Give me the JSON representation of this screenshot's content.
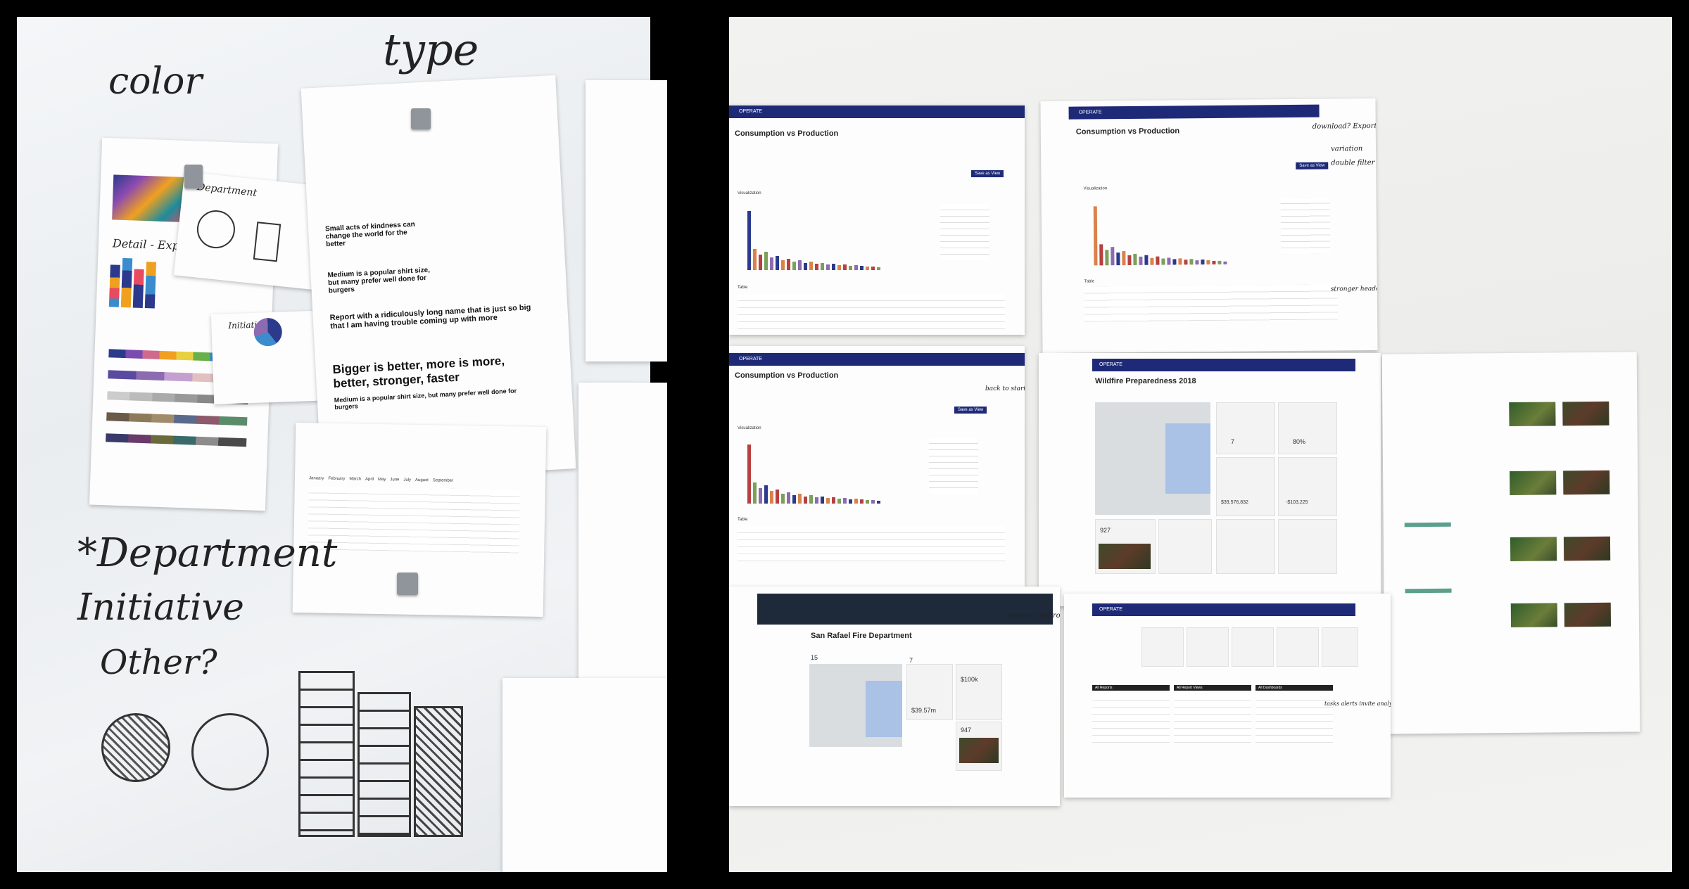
{
  "left_photo": {
    "handwriting": {
      "color": "color",
      "type": "type",
      "department_top": "Department",
      "detail_explore": "Detail - Explore",
      "initiative_note": "Initiative",
      "big_department": "*Department",
      "big_initiative": "Initiative",
      "big_other": "Other?"
    },
    "type_sheet": {
      "heading_1": "Small acts of kindness can change the world for the better",
      "heading_2": "Medium is a popular shirt size, but many prefer well done for burgers",
      "heading_3": "Report with a ridiculously long name that is just so big that I am having trouble coming up with more",
      "heading_4": "Bigger is better, more is more, better, stronger, faster",
      "subhead_4": "Medium is a popular shirt size, but many prefer well done for burgers"
    },
    "table_sheet": {
      "columns": [
        "January",
        "February",
        "March",
        "April",
        "May",
        "June",
        "July",
        "August",
        "September"
      ]
    }
  },
  "right_photo": {
    "sheets": [
      {
        "title": "Consumption vs Production",
        "brand": "OPERATE",
        "button": "Save as View",
        "section_a": "Visualization",
        "section_b": "Table"
      },
      {
        "title": "Consumption vs Production",
        "brand": "OPERATE",
        "button": "Save as View",
        "section_a": "Visualization",
        "section_b": "Table"
      },
      {
        "title": "Consumption vs Production",
        "brand": "OPERATE",
        "button": "Save as View",
        "section_a": "Visualization",
        "section_b": "Table"
      },
      {
        "title": "Wildfire Preparedness 2018",
        "brand": "OPERATE",
        "metric_a": "$39,576,832",
        "metric_b": "-$103,225",
        "metric_c": "80%",
        "metric_d": "7",
        "metric_e": "927"
      },
      {
        "title": "San Rafael Fire Department",
        "metric_a": "$39.57m",
        "metric_b": "$100k",
        "metric_c": "947",
        "metric_d": "15",
        "metric_e": "7"
      },
      {
        "brand": "OPERATE",
        "col_a": "All Reports",
        "col_b": "All Report Views",
        "col_c": "All Dashboards"
      }
    ],
    "handwriting": {
      "download_export": "download? Export",
      "variation": "variation",
      "double_filter": "double filter",
      "stronger_headers": "stronger headers",
      "mission_control": "mission control",
      "back_to_start": "back to start",
      "tasks_alerts": "tasks alerts invite analysis"
    }
  },
  "colors": {
    "navy": "#1e2a78",
    "chart_blue": "#2b3a8c",
    "chart_orange": "#d9824a",
    "chart_red": "#b84040",
    "chart_green": "#7aa05a",
    "chart_purple": "#8c6bb0"
  }
}
